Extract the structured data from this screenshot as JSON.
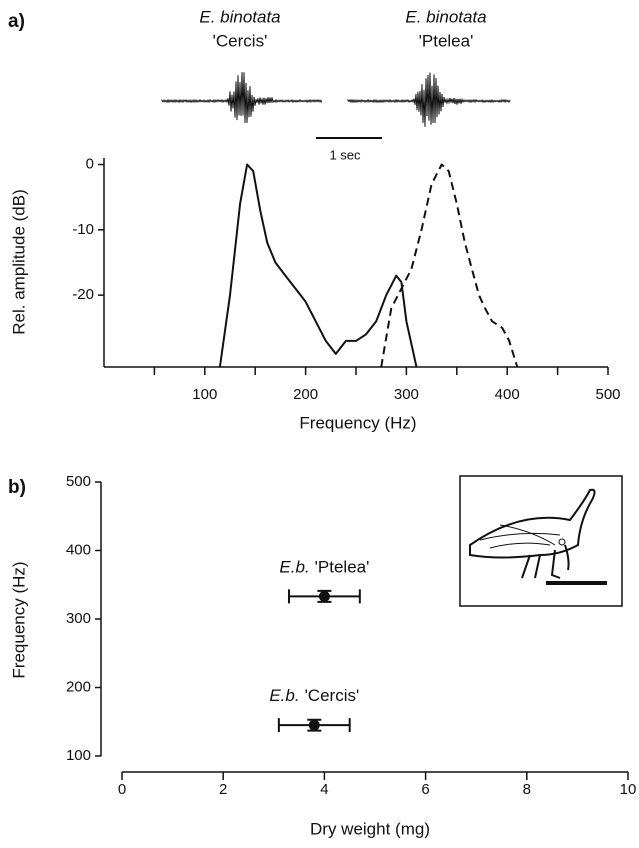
{
  "chart_data": [
    {
      "type": "line",
      "panel_label": "a)",
      "xlabel": "Frequency (Hz)",
      "ylabel": "Rel. amplitude (dB)",
      "xlim": [
        0,
        500
      ],
      "xticks": [
        100,
        200,
        300,
        400,
        500
      ],
      "xminor_ticks": [
        50,
        150,
        250,
        350,
        450
      ],
      "ylim": [
        -31,
        1
      ],
      "yticks": [
        0,
        -10,
        -20
      ],
      "scale_bar_label": "1 sec",
      "series": [
        {
          "name": "'Cercis'",
          "species": "E. binotata",
          "color": "#111111",
          "dash": "solid",
          "x": [
            115,
            125,
            135,
            142,
            148,
            155,
            162,
            170,
            180,
            190,
            200,
            210,
            220,
            230,
            240,
            250,
            260,
            270,
            280,
            290,
            295,
            300,
            310
          ],
          "values": [
            -31,
            -20,
            -6,
            0,
            -1,
            -7,
            -12,
            -15,
            -17,
            -19,
            -21,
            -24,
            -27,
            -29,
            -27,
            -27,
            -26,
            -24,
            -20,
            -17,
            -18,
            -24,
            -31
          ]
        },
        {
          "name": "'Ptelea'",
          "species": "E. binotata",
          "color": "#111111",
          "dash": "dashed",
          "x": [
            275,
            285,
            295,
            305,
            315,
            325,
            335,
            342,
            350,
            358,
            365,
            372,
            378,
            385,
            395,
            402,
            410
          ],
          "values": [
            -31,
            -22,
            -19,
            -16,
            -10,
            -3,
            0,
            -1,
            -6,
            -12,
            -16,
            -20,
            -22,
            -24,
            -25,
            -27,
            -31
          ]
        }
      ]
    },
    {
      "type": "scatter",
      "panel_label": "b)",
      "xlabel": "Dry weight (mg)",
      "ylabel": "Frequency (Hz)",
      "xlim": [
        0,
        10
      ],
      "xticks": [
        0,
        2,
        4,
        6,
        8,
        10
      ],
      "ylim": [
        100,
        500
      ],
      "yticks": [
        100,
        200,
        300,
        400,
        500
      ],
      "color": "#111111",
      "points": [
        {
          "species": "E.b.",
          "host": "'Ptelea'",
          "x": 4.0,
          "y": 333,
          "xerr": 0.7,
          "yerr": 8
        },
        {
          "species": "E.b.",
          "host": "'Cercis'",
          "x": 3.8,
          "y": 145,
          "xerr": 0.7,
          "yerr": 8
        }
      ]
    }
  ]
}
